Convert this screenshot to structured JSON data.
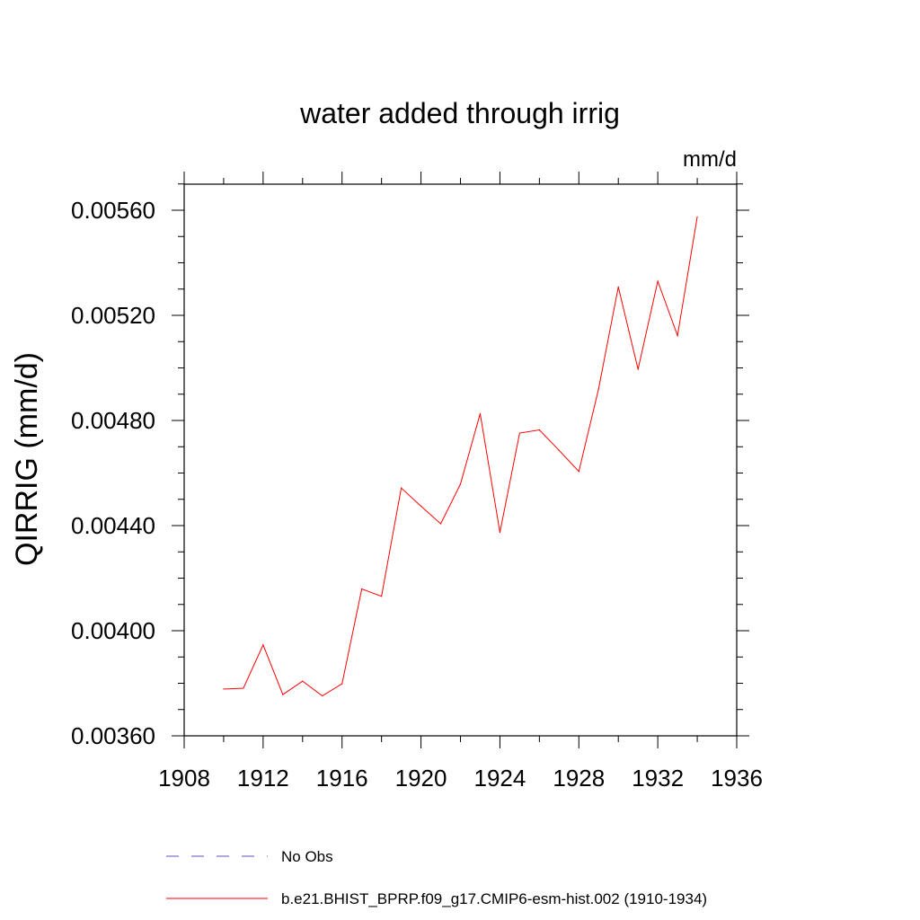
{
  "chart_data": {
    "type": "line",
    "title": "water added through irrig",
    "units": "mm/d",
    "xlabel": "",
    "ylabel": "QIRRIG  (mm/d)",
    "xlim": [
      1908,
      1936
    ],
    "ylim": [
      0.0036,
      0.0057
    ],
    "x_ticks": [
      1908,
      1912,
      1916,
      1920,
      1924,
      1928,
      1932,
      1936
    ],
    "x_tick_labels": [
      "1908",
      "1912",
      "1916",
      "1920",
      "1924",
      "1928",
      "1932",
      "1936"
    ],
    "y_ticks": [
      0.0036,
      0.004,
      0.0044,
      0.0048,
      0.0052,
      0.0056
    ],
    "y_tick_labels": [
      "0.00360",
      "0.00400",
      "0.00440",
      "0.00480",
      "0.00520",
      "0.00560"
    ],
    "grid": false,
    "legend_position": "bottom",
    "series": [
      {
        "name": "No Obs",
        "color": "#5a4fbf",
        "dash": "dashed",
        "x": [],
        "values": []
      },
      {
        "name": "b.e21.BHIST_BPRP.f09_g17.CMIP6-esm-hist.002 (1910-1934)",
        "color": "#ff0000",
        "dash": "solid",
        "x": [
          1910,
          1911,
          1912,
          1913,
          1914,
          1915,
          1916,
          1917,
          1918,
          1919,
          1920,
          1921,
          1922,
          1923,
          1924,
          1925,
          1926,
          1927,
          1928,
          1929,
          1930,
          1931,
          1932,
          1933,
          1934
        ],
        "values": [
          0.003778,
          0.003781,
          0.003946,
          0.003757,
          0.003808,
          0.003752,
          0.003798,
          0.004159,
          0.004131,
          0.004543,
          0.004474,
          0.004407,
          0.004558,
          0.004826,
          0.004374,
          0.004752,
          0.004764,
          0.004686,
          0.004606,
          0.00492,
          0.005308,
          0.004995,
          0.00533,
          0.005123,
          0.005575
        ]
      }
    ]
  }
}
